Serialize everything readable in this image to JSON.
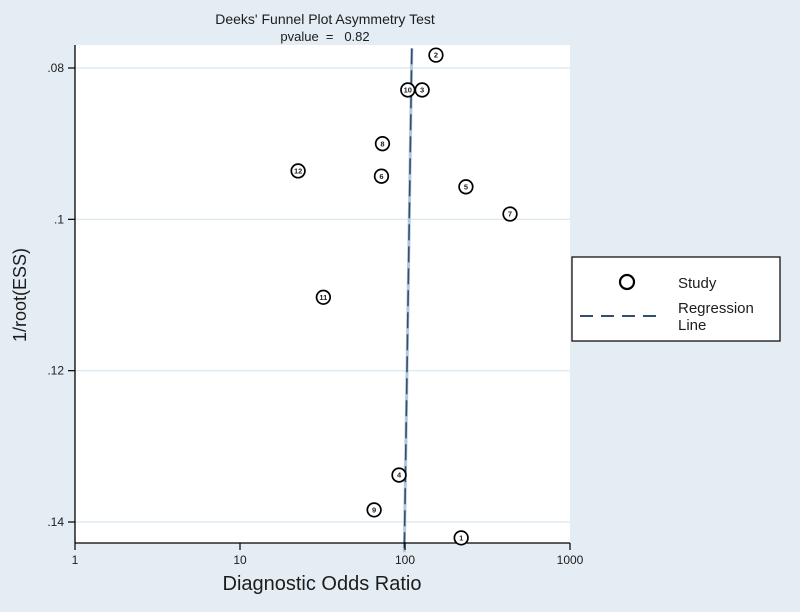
{
  "title": "Deeks' Funnel Plot Asymmetry Test",
  "subtitle": "pvalue  =   0.82",
  "axes": {
    "x_label": "Diagnostic Odds Ratio",
    "y_label": "1/root(ESS)",
    "x_tick_labels": [
      "1",
      "10",
      "100",
      "1000"
    ],
    "y_tick_labels": [
      ".08",
      ".1",
      ".12",
      ".14"
    ]
  },
  "legend": {
    "study_label": "Study",
    "regression_lines": [
      "Regression",
      "Line"
    ]
  },
  "colors": {
    "background": "#e4edf3",
    "plot_bg": "#ffffff",
    "grid": "#ddeaf2",
    "axis": "#000000",
    "regression_dash": "#31506f",
    "regression_halo": "#b3c8da",
    "marker_stroke": "#000000",
    "marker_fill": "#ffffff"
  },
  "chart_data": {
    "type": "scatter",
    "title": "Deeks' Funnel Plot Asymmetry Test",
    "subtitle": "pvalue = 0.82",
    "xlabel": "Diagnostic Odds Ratio",
    "ylabel": "1/root(ESS)",
    "x_scale": "log10",
    "xlim": [
      1,
      1000
    ],
    "x_ticks": [
      1,
      10,
      100,
      1000
    ],
    "y_reversed": true,
    "y_tick_values": [
      0.08,
      0.1,
      0.12,
      0.14
    ],
    "y_tick_labels": [
      ".08",
      ".1",
      ".12",
      ".14"
    ],
    "grid": "horizontal",
    "legend_position": "outside-right",
    "legend_entries": [
      {
        "marker": "circle",
        "label": "Study"
      },
      {
        "marker": "dashed-line",
        "label": "Regression Line"
      }
    ],
    "points": [
      {
        "label": "2",
        "x": 154,
        "y": 0.0783
      },
      {
        "label": "10",
        "x": 104,
        "y": 0.0829
      },
      {
        "label": "3",
        "x": 127,
        "y": 0.0829
      },
      {
        "label": "8",
        "x": 73,
        "y": 0.09
      },
      {
        "label": "12",
        "x": 22.5,
        "y": 0.0936
      },
      {
        "label": "6",
        "x": 72,
        "y": 0.0943
      },
      {
        "label": "5",
        "x": 234,
        "y": 0.0957
      },
      {
        "label": "7",
        "x": 433,
        "y": 0.0993
      },
      {
        "label": "11",
        "x": 32,
        "y": 0.1103
      },
      {
        "label": "4",
        "x": 92,
        "y": 0.1338
      },
      {
        "label": "9",
        "x": 65,
        "y": 0.1384
      },
      {
        "label": "1",
        "x": 219,
        "y": 0.1421
      }
    ],
    "regression_line": {
      "x1": 110,
      "y1": 0.0774,
      "x2": 99,
      "y2": 0.144
    }
  }
}
